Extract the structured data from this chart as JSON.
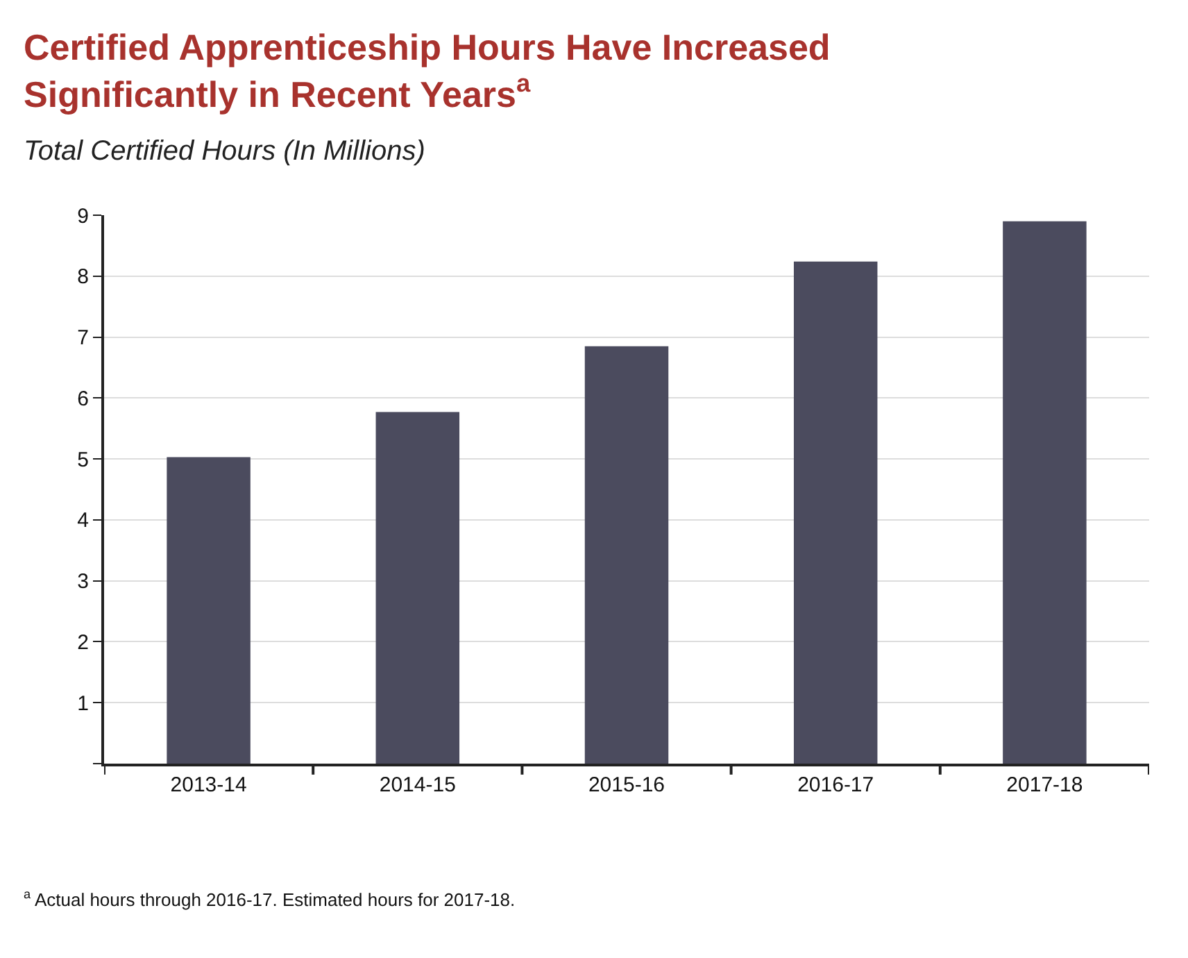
{
  "chart_data": {
    "type": "bar",
    "title": "Certified Apprenticeship Hours Have Increased Significantly in Recent Years$^{a}$",
    "subtitle": "Total Certified Hours (In Millions)",
    "categories": [
      "2013-14",
      "2014-15",
      "2015-16",
      "2016-17",
      "2017-18"
    ],
    "values": [
      5.03,
      5.77,
      6.85,
      8.24,
      8.9
    ],
    "color": "#4b4b5e",
    "ylim": [
      0,
      9
    ],
    "yticks": [
      {
        "value": 0,
        "label": null
      },
      1,
      2,
      3,
      4,
      5,
      6,
      7,
      8,
      9
    ],
    "grid": "y",
    "legend": false,
    "annotations": [
      "$^{a}$ Actual hours through 2016-17. Estimated hours for 2017-18."
    ]
  }
}
